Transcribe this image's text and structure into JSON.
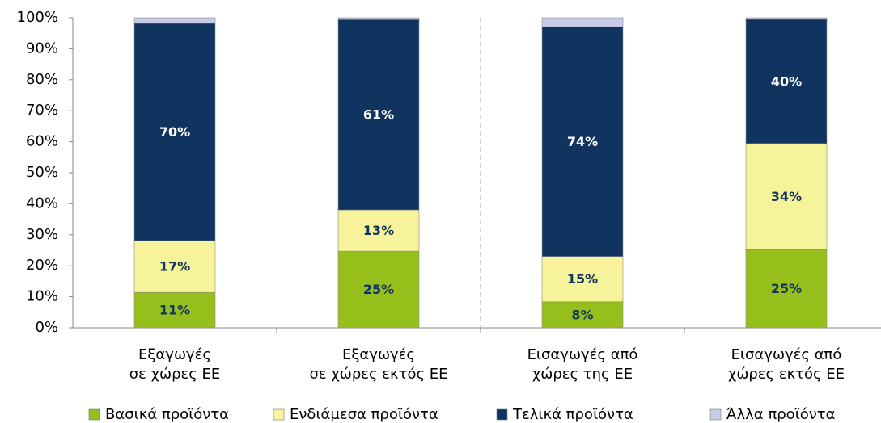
{
  "chart_data": {
    "type": "stacked-bar",
    "categories": [
      [
        "Εξαγωγές",
        "σε χώρες ΕΕ"
      ],
      [
        "Εξαγωγές",
        "σε χώρες εκτός ΕΕ"
      ],
      [
        "Εισαγωγές από",
        "χώρες της ΕΕ"
      ],
      [
        "Εισαγωγές από",
        "χώρες εκτός ΕΕ"
      ]
    ],
    "series": [
      {
        "name": "Βασικά προϊόντα",
        "color": "#97bf1b",
        "label_color": "#10345f",
        "values": [
          11.4,
          24.7,
          8.4,
          25.2
        ],
        "value_labels": [
          "11%",
          "25%",
          "8%",
          "25%"
        ]
      },
      {
        "name": "Ενδιάμεσα προϊόντα",
        "color": "#f7f39a",
        "label_color": "#10345f",
        "values": [
          16.7,
          13.3,
          14.6,
          34.2
        ],
        "value_labels": [
          "17%",
          "13%",
          "15%",
          "34%"
        ]
      },
      {
        "name": "Τελικά προϊόντα",
        "color": "#10345f",
        "label_color": "#ffffff",
        "values": [
          70.1,
          61.4,
          74.1,
          40.1
        ],
        "value_labels": [
          "70%",
          "61%",
          "74%",
          "40%"
        ]
      },
      {
        "name": "Άλλα προϊόντα",
        "color": "#c8cbe8",
        "values": [
          1.8,
          0.6,
          2.9,
          0.5
        ]
      }
    ],
    "ylim": [
      0,
      100
    ],
    "yticks": [
      {
        "value": 0,
        "label": "0%"
      },
      {
        "value": 10,
        "label": "10%"
      },
      {
        "value": 20,
        "label": "20%"
      },
      {
        "value": 30,
        "label": "30%"
      },
      {
        "value": 40,
        "label": "40%"
      },
      {
        "value": 50,
        "label": "50%"
      },
      {
        "value": 60,
        "label": "60%"
      },
      {
        "value": 70,
        "label": "70%"
      },
      {
        "value": 80,
        "label": "80%"
      },
      {
        "value": 90,
        "label": "90%"
      },
      {
        "value": 100,
        "label": "100%"
      }
    ],
    "grid": false,
    "legend": "bottom"
  }
}
